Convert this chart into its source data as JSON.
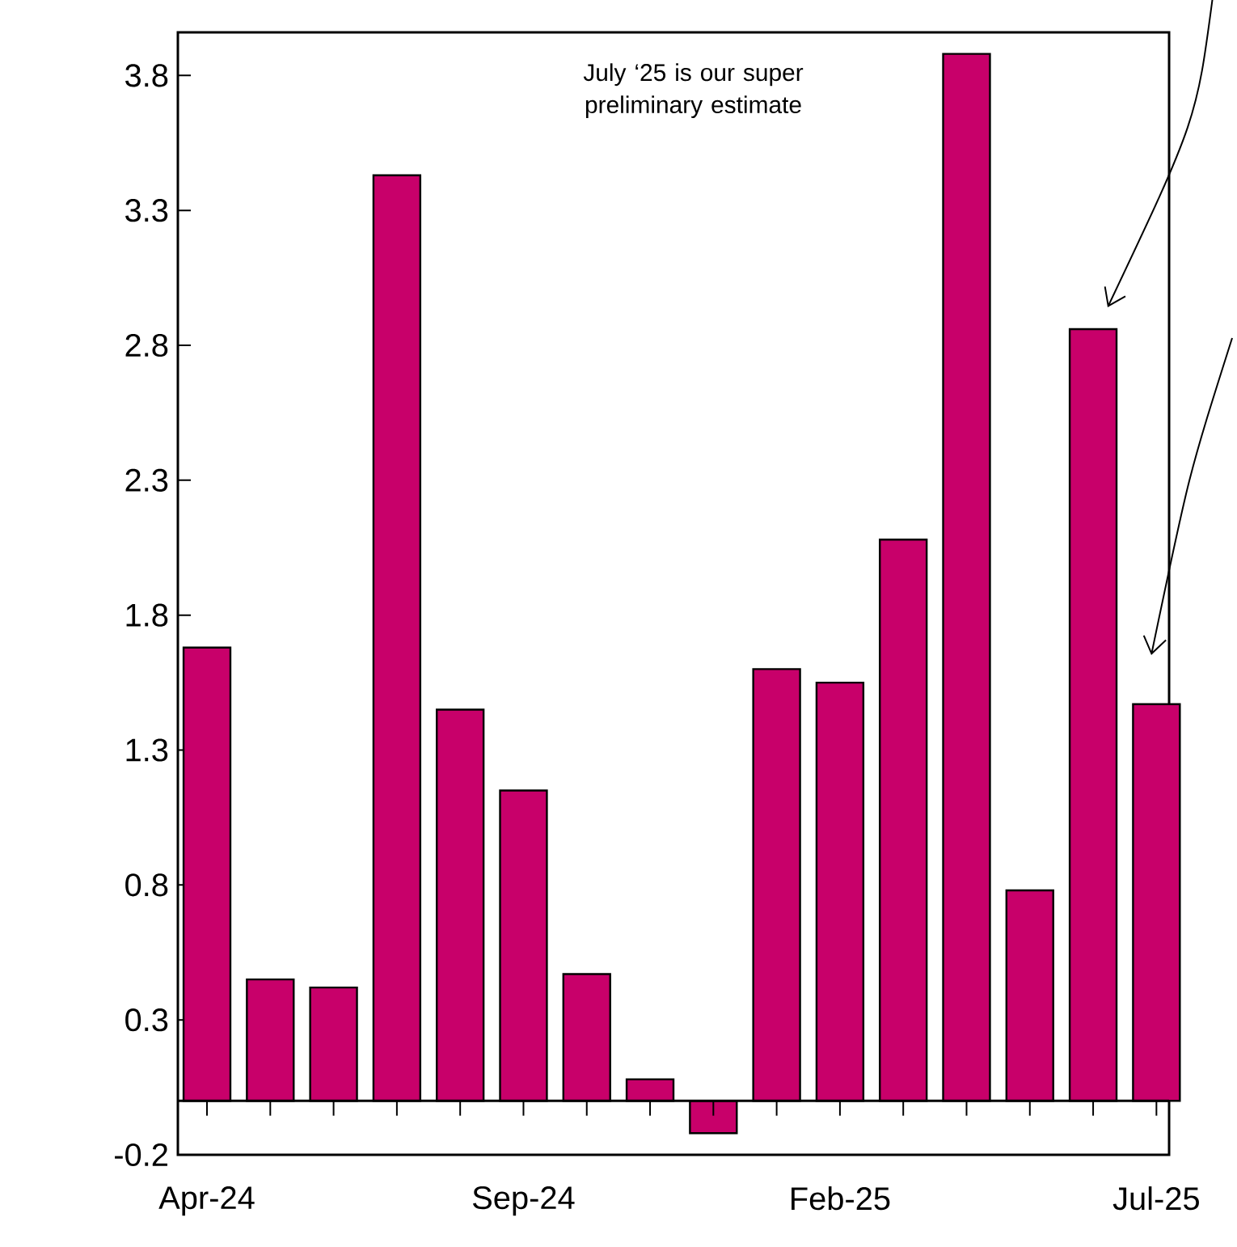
{
  "chart_data": {
    "type": "bar",
    "categories": [
      "Apr-24",
      null,
      null,
      null,
      null,
      "Sep-24",
      null,
      null,
      null,
      null,
      "Feb-25",
      null,
      null,
      null,
      null,
      "Jul-25"
    ],
    "values": [
      1.68,
      0.45,
      0.42,
      3.43,
      1.45,
      1.15,
      0.47,
      0.08,
      -0.12,
      1.6,
      1.55,
      2.08,
      3.88,
      0.78,
      2.86,
      1.47
    ],
    "color": "#c8006a",
    "ylim": [
      -0.2,
      3.96
    ],
    "yticks": [
      -0.2,
      0.3,
      0.8,
      1.3,
      1.8,
      2.3,
      2.8,
      3.3,
      3.8
    ],
    "annotations": [
      "July ‘25 is our super preliminary estimate"
    ]
  }
}
